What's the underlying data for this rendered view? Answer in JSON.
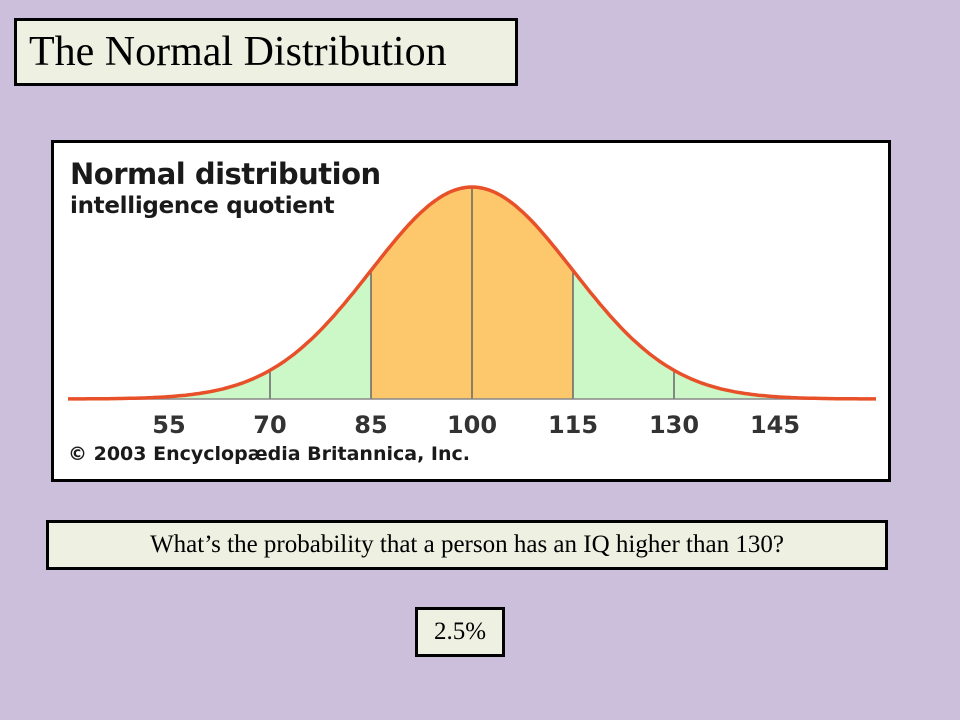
{
  "slide": {
    "title": "The Normal Distribution",
    "question": "What’s the probability that a person has an IQ higher than 130?",
    "answer": "2.5%"
  },
  "chart_data": {
    "type": "area",
    "title": "Normal distribution",
    "subtitle": "intelligence quotient",
    "credit": "© 2003 Encyclopædia Britannica, Inc.",
    "distribution": {
      "mean": 100,
      "sd": 15
    },
    "x_ticks": [
      55,
      70,
      85,
      100,
      115,
      130,
      145
    ],
    "xlim": [
      40,
      160
    ],
    "highlight_range": [
      85,
      115
    ],
    "colors": {
      "curve": "#e8502a",
      "inner_fill": "#fdc86b",
      "outer_fill": "#ccf7c6",
      "divider": "#666666",
      "baseline": "#888888",
      "tick_label": "#333333"
    }
  }
}
